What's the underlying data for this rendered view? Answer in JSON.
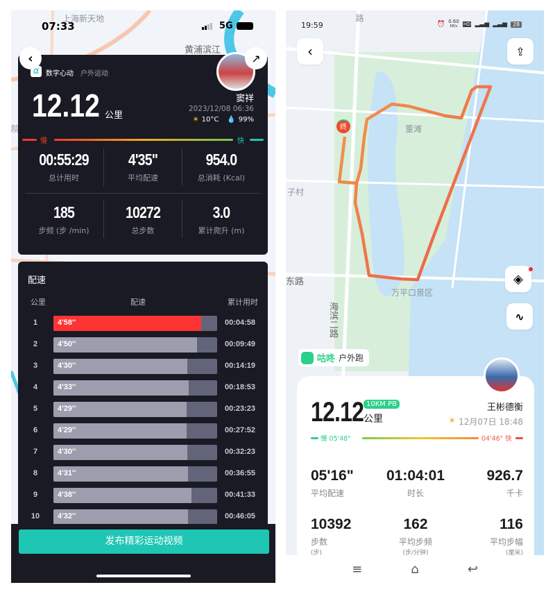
{
  "left": {
    "status": {
      "time": "07:33",
      "network": "5G"
    },
    "map_labels": [
      "上海新天地",
      "黄浦滨江",
      "院区"
    ],
    "brand": {
      "name": "数字心动",
      "activity": "户外运动"
    },
    "distance": "12.12",
    "distance_unit": "公里",
    "user": {
      "name": "窦祥",
      "datetime": "2023/12/08 06:36",
      "temperature": "10°C",
      "humidity": "99%"
    },
    "pace_scale": {
      "slow": "慢",
      "fast": "快"
    },
    "stats": [
      {
        "value": "00:55:29",
        "label": "总计用时"
      },
      {
        "value": "4'35\"",
        "label": "平均配速"
      },
      {
        "value": "954.0",
        "label": "总消耗 (Kcal)"
      },
      {
        "value": "185",
        "label": "步频 (步 /min)"
      },
      {
        "value": "10272",
        "label": "总步数"
      },
      {
        "value": "3.0",
        "label": "累计爬升 (m)"
      }
    ],
    "splits": {
      "title": "配速",
      "headers": [
        "公里",
        "配速",
        "累计用时"
      ],
      "rows": [
        {
          "km": "1",
          "pace": "4'58''",
          "cumulative": "00:04:58",
          "highlight": true
        },
        {
          "km": "2",
          "pace": "4'50''",
          "cumulative": "00:09:49"
        },
        {
          "km": "3",
          "pace": "4'30''",
          "cumulative": "00:14:19"
        },
        {
          "km": "4",
          "pace": "4'33''",
          "cumulative": "00:18:53"
        },
        {
          "km": "5",
          "pace": "4'29''",
          "cumulative": "00:23:23"
        },
        {
          "km": "6",
          "pace": "4'29''",
          "cumulative": "00:27:52"
        },
        {
          "km": "7",
          "pace": "4'30''",
          "cumulative": "00:32:23"
        },
        {
          "km": "8",
          "pace": "4'31''",
          "cumulative": "00:36:55"
        },
        {
          "km": "9",
          "pace": "4'38''",
          "cumulative": "00:41:33"
        },
        {
          "km": "10",
          "pace": "4'32''",
          "cumulative": "00:46:05"
        }
      ]
    },
    "publish_button": "发布精彩运动视频",
    "colors": {
      "highlight": "#ff3333",
      "button": "#1fc6b4",
      "card": "#191a23"
    }
  },
  "right": {
    "status": {
      "time": "19:59",
      "speed": "0.60",
      "speed_unit": "KB/s",
      "battery": "28"
    },
    "map_labels": [
      "路",
      "董滩",
      "子村",
      "东路",
      "万平口景区",
      "海滨二路"
    ],
    "end_marker": "终",
    "brand": {
      "name": "咕咚",
      "activity": "户外跑"
    },
    "distance": "12.12",
    "distance_unit": "公里",
    "badge": "10KM PB",
    "user": {
      "name": "王彬德衡",
      "datetime": "12月07日 18:48"
    },
    "pace_scale": {
      "slow": "慢 05'48\"",
      "fast": "04'46\" 快"
    },
    "stats": [
      {
        "value": "05'16\"",
        "label": "平均配速"
      },
      {
        "value": "01:04:01",
        "label": "时长"
      },
      {
        "value": "926.7",
        "label": "千卡"
      },
      {
        "value": "10392",
        "label": "步数",
        "unit": "(步)"
      },
      {
        "value": "162",
        "label": "平均步频",
        "unit": "(步/分钟)"
      },
      {
        "value": "116",
        "label": "平均步幅",
        "unit": "(厘米)"
      }
    ],
    "colors": {
      "brand": "#2dd08a",
      "route": "#f07a45"
    }
  }
}
